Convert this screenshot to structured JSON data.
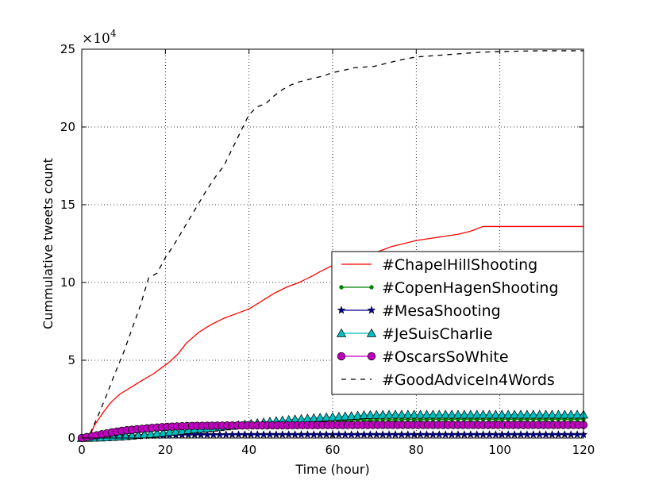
{
  "chart_data": {
    "type": "line",
    "title": "",
    "xlabel": "Time (hour)",
    "ylabel": "Cummulative tweets count",
    "xlim": [
      0,
      120
    ],
    "ylim": [
      0,
      250000
    ],
    "x_ticks": [
      0,
      20,
      40,
      60,
      80,
      100,
      120
    ],
    "y_ticks": [
      0,
      5,
      10,
      15,
      20,
      25
    ],
    "y_tick_labels": [
      "0",
      "5",
      "10",
      "15",
      "20",
      "25"
    ],
    "y_scale_label": "×10",
    "y_scale_exponent": "4",
    "grid": true,
    "legend_position": "center-right",
    "series": [
      {
        "name": "#ChapelHillShooting",
        "color": "#ff0000",
        "style": "solid",
        "marker": "none",
        "x": [
          0,
          2,
          3,
          5,
          7,
          9,
          12,
          15,
          17,
          19,
          21,
          23,
          25,
          28,
          31,
          34,
          37,
          40,
          43,
          46,
          49,
          52,
          55,
          57,
          60,
          63,
          66,
          70,
          72,
          74,
          80,
          85,
          90,
          93,
          96,
          100,
          110,
          120
        ],
        "y": [
          0,
          2000,
          8000,
          16000,
          23000,
          28000,
          33000,
          38000,
          41000,
          45000,
          49000,
          54000,
          61000,
          68000,
          73000,
          77000,
          80000,
          83000,
          88000,
          93000,
          97000,
          100000,
          104000,
          107000,
          111000,
          114000,
          117000,
          119000,
          121000,
          123000,
          127000,
          129000,
          131000,
          133000,
          136000,
          136000,
          136000,
          136000
        ]
      },
      {
        "name": "#CopenHagenShooting",
        "color": "#008000",
        "style": "solid",
        "marker": "dot",
        "x": [
          0,
          5,
          10,
          15,
          20,
          25,
          30,
          35,
          40,
          45,
          50,
          55,
          60,
          65,
          70,
          75,
          80,
          90,
          100,
          110,
          120
        ],
        "y": [
          0,
          1000,
          2500,
          4000,
          5500,
          6800,
          7800,
          8600,
          9300,
          10000,
          10600,
          11000,
          11300,
          11500,
          11700,
          11800,
          11900,
          12000,
          12000,
          12000,
          12000
        ]
      },
      {
        "name": "#MesaShooting",
        "color": "#00008b",
        "style": "solid",
        "marker": "star",
        "x": [
          0,
          5,
          10,
          15,
          20,
          25,
          30,
          40,
          50,
          60,
          70,
          80,
          90,
          100,
          110,
          120
        ],
        "y": [
          0,
          500,
          1000,
          1500,
          1800,
          2000,
          2100,
          2200,
          2200,
          2200,
          2200,
          2200,
          2200,
          2200,
          2200,
          2200
        ]
      },
      {
        "name": "#JeSuisCharlie",
        "color": "#00bfbf",
        "style": "solid",
        "marker": "triangle",
        "x": [
          0,
          5,
          10,
          15,
          20,
          25,
          30,
          35,
          40,
          45,
          50,
          55,
          60,
          65,
          68,
          75,
          80,
          90,
          100,
          110,
          120
        ],
        "y": [
          0,
          300,
          1000,
          2200,
          3500,
          5000,
          6200,
          7500,
          9000,
          10500,
          11800,
          12700,
          13500,
          14200,
          14800,
          15000,
          15000,
          15000,
          15000,
          15000,
          15000
        ]
      },
      {
        "name": "#OscarsSoWhite",
        "color": "#bf00bf",
        "style": "solid",
        "marker": "circle",
        "x": [
          0,
          2,
          4,
          6,
          8,
          10,
          13,
          16,
          19,
          22,
          25,
          30,
          40,
          50,
          60,
          70,
          80,
          90,
          100,
          110,
          120
        ],
        "y": [
          0,
          1000,
          2000,
          3000,
          4000,
          4800,
          5600,
          6300,
          7000,
          7400,
          7700,
          7900,
          8100,
          8200,
          8300,
          8400,
          8400,
          8400,
          8400,
          8400,
          8400
        ]
      },
      {
        "name": "#GoodAdviceIn4Words",
        "color": "#000000",
        "style": "dashed",
        "marker": "none",
        "x": [
          0,
          2,
          4,
          6,
          8,
          10,
          12,
          14,
          16,
          18,
          20,
          22,
          24,
          26,
          28,
          30,
          32,
          34,
          36,
          38,
          40,
          42,
          44,
          46,
          48,
          50,
          52,
          55,
          58,
          60,
          62,
          65,
          70,
          73,
          76,
          80,
          85,
          90,
          95,
          100,
          110,
          120
        ],
        "y": [
          0,
          3000,
          15000,
          28000,
          42000,
          55000,
          70000,
          85000,
          103000,
          106000,
          116000,
          124000,
          133000,
          142000,
          151000,
          160000,
          168000,
          175000,
          186000,
          197000,
          208000,
          213000,
          215000,
          220000,
          224000,
          227000,
          229000,
          231000,
          233000,
          235000,
          236000,
          238000,
          239000,
          241000,
          243000,
          245000,
          246000,
          247000,
          248000,
          248500,
          249000,
          249000
        ]
      }
    ]
  }
}
